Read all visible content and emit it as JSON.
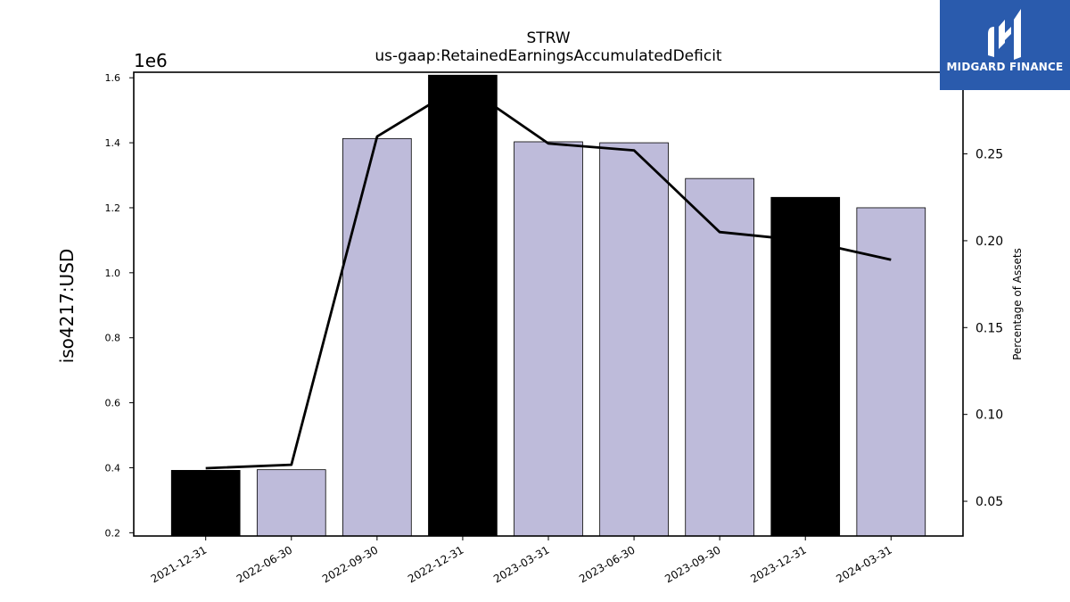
{
  "chart_data": {
    "type": "bar",
    "title": "STRW",
    "subtitle": "us-gaap:RetainedEarningsAccumulatedDeficit",
    "ylabel": "iso4217:USD",
    "y_offset_label": "1e6",
    "y2label": "Percentage of Assets",
    "categories": [
      "2021-12-31",
      "2022-06-30",
      "2022-09-30",
      "2022-12-31",
      "2023-03-31",
      "2023-06-30",
      "2023-09-30",
      "2023-12-31",
      "2024-03-31"
    ],
    "series": [
      {
        "values": [
          392000,
          394000,
          1413000,
          1608000,
          1403000,
          1400000,
          1290000,
          1232000,
          1200000
        ],
        "bar_colors": [
          "#000000",
          "#bebbda",
          "#bebbda",
          "#000000",
          "#bebbda",
          "#bebbda",
          "#bebbda",
          "#000000",
          "#bebbda"
        ]
      },
      {
        "axis": "right",
        "type": "line",
        "color": "#000000",
        "values": [
          0.069,
          0.071,
          0.26,
          0.29,
          0.256,
          0.252,
          0.205,
          0.2,
          0.189
        ]
      }
    ],
    "ylim": [
      190000.0,
      1617000.0
    ],
    "y2lim": [
      0.03,
      0.297
    ],
    "yticks": [
      "0.2",
      "0.4",
      "0.6",
      "0.8",
      "1.0",
      "1.2",
      "1.4",
      "1.6"
    ],
    "ytick_values": [
      200000,
      400000,
      600000,
      800000,
      1000000,
      1200000,
      1400000,
      1600000
    ],
    "y2ticks": [
      "0.05",
      "0.10",
      "0.15",
      "0.20",
      "0.25"
    ],
    "y2tick_values": [
      0.05,
      0.1,
      0.15,
      0.2,
      0.25
    ],
    "grid": false
  },
  "logo": {
    "text": "MIDGARD FINANCE",
    "background": "#2a5bad"
  }
}
